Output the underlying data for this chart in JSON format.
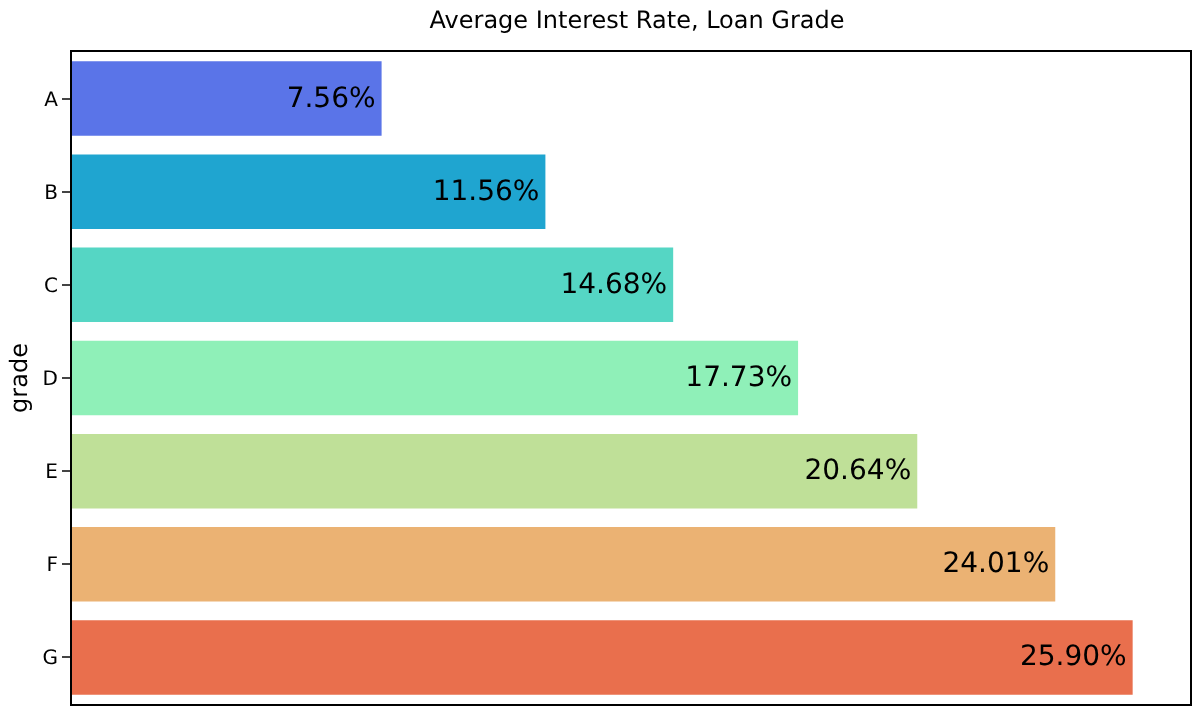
{
  "chart_data": {
    "type": "bar",
    "orientation": "horizontal",
    "title": "Average Interest Rate, Loan Grade",
    "ylabel": "grade",
    "categories": [
      "A",
      "B",
      "C",
      "D",
      "E",
      "F",
      "G"
    ],
    "values": [
      7.56,
      11.56,
      14.68,
      17.73,
      20.64,
      24.01,
      25.9
    ],
    "value_labels": [
      "7.56%",
      "11.56%",
      "14.68%",
      "17.73%",
      "20.64%",
      "24.01%",
      "25.90%"
    ],
    "colors": [
      "#5a74e8",
      "#1fa5d0",
      "#55d6c4",
      "#8ff0b8",
      "#bfe098",
      "#ebb273",
      "#e96f4d"
    ],
    "xlim": [
      0,
      27.3
    ],
    "tick_labels": "y"
  }
}
